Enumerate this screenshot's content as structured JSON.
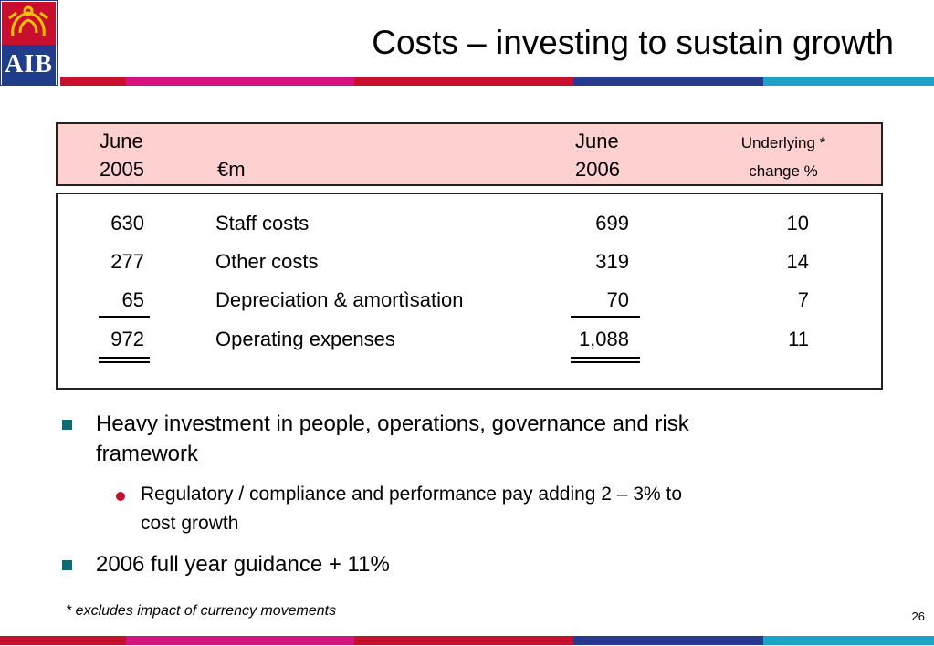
{
  "logo": {
    "text": "AIB"
  },
  "title": "Costs – investing to sustain growth",
  "header": {
    "col1_line1": "June",
    "col1_line2": "2005",
    "col2": "€m",
    "col3_line1": "June",
    "col3_line2": "2006",
    "col4_line1": "Underlying *",
    "col4_line2": "change %"
  },
  "rows": [
    {
      "y2005": "630",
      "label": "Staff costs",
      "y2006": "699",
      "change": "10"
    },
    {
      "y2005": "277",
      "label": "Other costs",
      "y2006": "319",
      "change": "14"
    },
    {
      "y2005": "65",
      "label": "Depreciation & amortìsation",
      "y2006": "70",
      "change": "7"
    },
    {
      "y2005": "972",
      "label": "Operating expenses",
      "y2006": "1,088",
      "change": "11"
    }
  ],
  "bullets": {
    "b1": "Heavy investment in people, operations, governance and risk",
    "b1_cont": "framework",
    "sub1": "Regulatory / compliance and performance pay adding 2 – 3% to",
    "sub1_cont": "cost growth",
    "b2": "2006 full year guidance + 11%"
  },
  "footnote": "* excludes impact of currency movements",
  "page_number": "26",
  "colors": {
    "red": "#c8102e",
    "magenta": "#d6127e",
    "navy": "#273a8e",
    "cyan": "#1ea2c4",
    "header_bg": "#ffd0d0",
    "bullet": "#0e6b73"
  }
}
